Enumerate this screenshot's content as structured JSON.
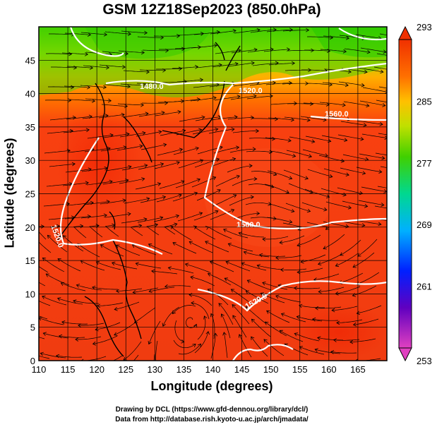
{
  "title": "GSM 12Z18Sep2023 (850.0hPa)",
  "x_axis": {
    "label": "Longitude (degrees)",
    "range": [
      110,
      170
    ],
    "ticks": [
      "110",
      "115",
      "120",
      "125",
      "130",
      "135",
      "140",
      "145",
      "150",
      "155",
      "160",
      "165"
    ]
  },
  "y_axis": {
    "label": "Latitude  (degrees)",
    "range": [
      0,
      50
    ],
    "ticks": [
      "0",
      "5",
      "10",
      "15",
      "20",
      "25",
      "30",
      "35",
      "40",
      "45"
    ]
  },
  "colorbar": {
    "ticks": [
      "253",
      "261",
      "269",
      "277",
      "285",
      "293"
    ],
    "range": [
      253,
      293
    ],
    "colors": [
      "#e040c0",
      "#5000c0",
      "#0030ff",
      "#00b0ff",
      "#00e0a0",
      "#40d000",
      "#c0e000",
      "#ffc000",
      "#ff7000",
      "#f03000"
    ]
  },
  "contours": {
    "labels": [
      "1480.0",
      "1520.0",
      "1560.0",
      "1520.0",
      "1560.0",
      "1520.0"
    ],
    "color": "#ffffff"
  },
  "credits": {
    "line1": "Drawing by DCL (https://www.gfd-dennou.org/library/dcl/)",
    "line2": "Data from http://database.rish.kyoto-u.ac.jp/arch/jmadata/"
  }
}
